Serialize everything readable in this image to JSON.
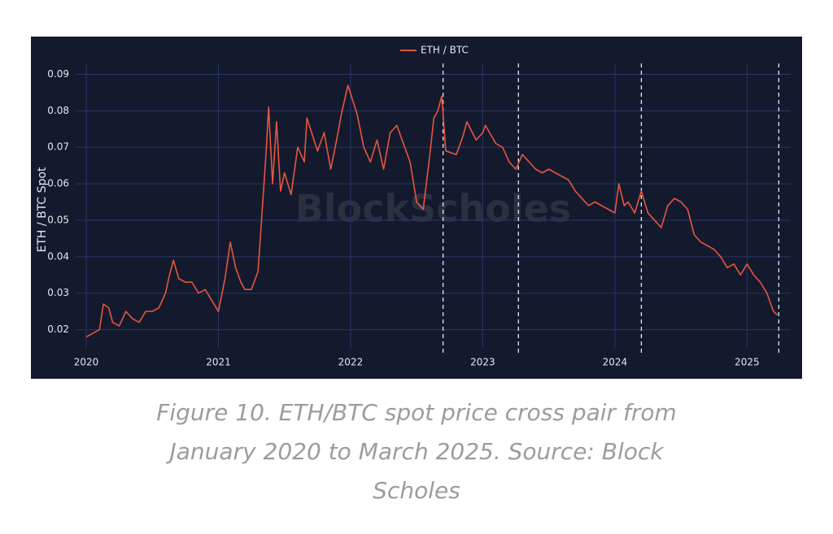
{
  "chart_data": {
    "type": "line",
    "legend_label": "ETH / BTC",
    "y_label": "ETH / BTC Spot",
    "watermark": "BlockScholes",
    "caption": "Figure 10. ETH/BTC spot price cross pair from January 2020 to March 2025. Source: Block Scholes",
    "x": [
      2020.0,
      2020.05,
      2020.1,
      2020.13,
      2020.17,
      2020.2,
      2020.25,
      2020.3,
      2020.35,
      2020.4,
      2020.45,
      2020.5,
      2020.55,
      2020.6,
      2020.63,
      2020.66,
      2020.7,
      2020.75,
      2020.8,
      2020.85,
      2020.9,
      2020.95,
      2021.0,
      2021.05,
      2021.09,
      2021.13,
      2021.17,
      2021.2,
      2021.25,
      2021.3,
      2021.33,
      2021.36,
      2021.38,
      2021.41,
      2021.44,
      2021.47,
      2021.5,
      2021.55,
      2021.6,
      2021.65,
      2021.67,
      2021.75,
      2021.8,
      2021.85,
      2021.9,
      2021.93,
      2021.98,
      2022.05,
      2022.1,
      2022.15,
      2022.2,
      2022.25,
      2022.3,
      2022.35,
      2022.4,
      2022.45,
      2022.5,
      2022.55,
      2022.6,
      2022.63,
      2022.66,
      2022.69,
      2022.72,
      2022.8,
      2022.85,
      2022.88,
      2022.95,
      2023.0,
      2023.02,
      2023.1,
      2023.15,
      2023.2,
      2023.25,
      2023.3,
      2023.35,
      2023.4,
      2023.45,
      2023.5,
      2023.55,
      2023.6,
      2023.65,
      2023.7,
      2023.75,
      2023.8,
      2023.85,
      2023.9,
      2023.95,
      2024.0,
      2024.03,
      2024.07,
      2024.1,
      2024.15,
      2024.2,
      2024.25,
      2024.3,
      2024.35,
      2024.4,
      2024.45,
      2024.5,
      2024.55,
      2024.6,
      2024.65,
      2024.7,
      2024.75,
      2024.8,
      2024.85,
      2024.9,
      2024.95,
      2025.0,
      2025.05,
      2025.1,
      2025.15,
      2025.2,
      2025.23
    ],
    "series": [
      {
        "name": "ETH / BTC",
        "color": "#e8553d",
        "values": [
          0.018,
          0.019,
          0.02,
          0.027,
          0.026,
          0.022,
          0.021,
          0.025,
          0.023,
          0.022,
          0.025,
          0.025,
          0.026,
          0.03,
          0.035,
          0.039,
          0.034,
          0.033,
          0.033,
          0.03,
          0.031,
          0.028,
          0.025,
          0.034,
          0.044,
          0.037,
          0.033,
          0.031,
          0.031,
          0.036,
          0.052,
          0.068,
          0.081,
          0.06,
          0.077,
          0.058,
          0.063,
          0.057,
          0.07,
          0.066,
          0.078,
          0.069,
          0.074,
          0.064,
          0.073,
          0.079,
          0.087,
          0.079,
          0.07,
          0.066,
          0.072,
          0.064,
          0.074,
          0.076,
          0.071,
          0.066,
          0.055,
          0.053,
          0.068,
          0.078,
          0.08,
          0.084,
          0.069,
          0.068,
          0.073,
          0.077,
          0.072,
          0.074,
          0.076,
          0.071,
          0.07,
          0.066,
          0.064,
          0.068,
          0.066,
          0.064,
          0.063,
          0.064,
          0.063,
          0.062,
          0.061,
          0.058,
          0.056,
          0.054,
          0.055,
          0.054,
          0.053,
          0.052,
          0.06,
          0.054,
          0.055,
          0.052,
          0.058,
          0.052,
          0.05,
          0.048,
          0.054,
          0.056,
          0.055,
          0.053,
          0.046,
          0.044,
          0.043,
          0.042,
          0.04,
          0.037,
          0.038,
          0.035,
          0.038,
          0.035,
          0.033,
          0.03,
          0.025,
          0.024
        ]
      }
    ],
    "vlines": [
      2022.7,
      2023.27,
      2024.2,
      2025.24
    ],
    "xlim": [
      2019.92,
      2025.33
    ],
    "xticks": [
      2020,
      2021,
      2022,
      2023,
      2024,
      2025
    ],
    "ylim": [
      0.015,
      0.093
    ],
    "yticks": [
      0.02,
      0.03,
      0.04,
      0.05,
      0.06,
      0.07,
      0.08,
      0.09
    ],
    "grid": true,
    "background": "#131a2e",
    "grid_color": "#283766"
  }
}
